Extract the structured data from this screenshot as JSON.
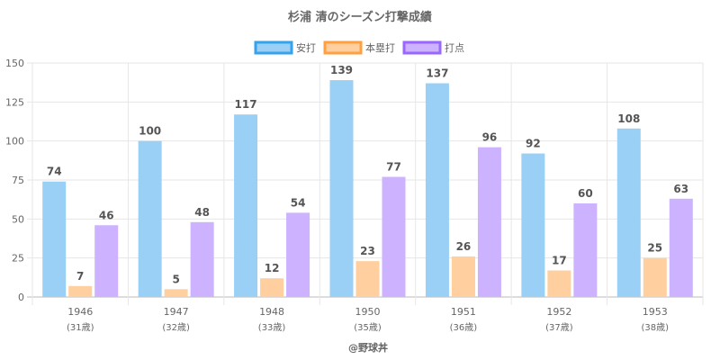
{
  "chart_data": {
    "type": "bar",
    "title": "杉浦 清のシーズン打撃成績",
    "categories": [
      "1946",
      "1947",
      "1948",
      "1950",
      "1951",
      "1952",
      "1953"
    ],
    "sublabels": [
      "(31歳)",
      "(32歳)",
      "(33歳)",
      "(35歳)",
      "(36歳)",
      "(37歳)",
      "(38歳)"
    ],
    "series": [
      {
        "name": "安打",
        "values": [
          74,
          100,
          117,
          139,
          137,
          92,
          108
        ],
        "fill": "#9ad0f5",
        "stroke": "#36a2eb"
      },
      {
        "name": "本塁打",
        "values": [
          7,
          5,
          12,
          23,
          26,
          17,
          25
        ],
        "fill": "#ffcf9f",
        "stroke": "#ff9f40"
      },
      {
        "name": "打点",
        "values": [
          46,
          48,
          54,
          77,
          96,
          60,
          63
        ],
        "fill": "#ccb2ff",
        "stroke": "#9966ff"
      }
    ],
    "ylim": [
      0,
      150
    ],
    "yticks": [
      0,
      25,
      50,
      75,
      100,
      125,
      150
    ],
    "legend_position": "top-center",
    "grid": true,
    "xlabel": "",
    "ylabel": ""
  },
  "credit": "@野球丼"
}
